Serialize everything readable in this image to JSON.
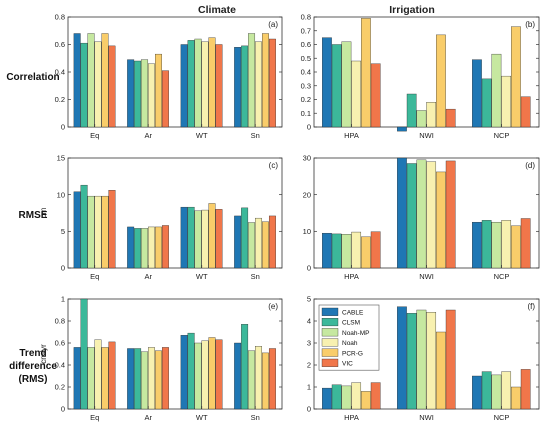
{
  "figure": {
    "col_titles": [
      "Climate",
      "Irrigation"
    ],
    "row_titles": [
      [
        "Correlation"
      ],
      [
        "RMSE"
      ],
      [
        "Trend",
        "difference",
        "(RMS)"
      ]
    ],
    "model_colors": [
      "#1f77b4",
      "#3cb89a",
      "#c6e8a0",
      "#f8f1b0",
      "#f9cd6a",
      "#f0764a"
    ]
  },
  "chart_data": [
    {
      "type": "bar",
      "panel_label": "(a)",
      "ylabel": "",
      "categories": [
        "Eq",
        "Ar",
        "WT",
        "Sn"
      ],
      "ylim": [
        0,
        0.8
      ],
      "yticks": [
        0,
        0.2,
        0.4,
        0.6,
        0.8
      ],
      "series": [
        {
          "name": "CABLE",
          "values": [
            0.68,
            0.49,
            0.6,
            0.58
          ]
        },
        {
          "name": "CLSM",
          "values": [
            0.61,
            0.48,
            0.63,
            0.59
          ]
        },
        {
          "name": "Noah-MP",
          "values": [
            0.68,
            0.49,
            0.64,
            0.68
          ]
        },
        {
          "name": "Noah",
          "values": [
            0.62,
            0.46,
            0.62,
            0.62
          ]
        },
        {
          "name": "PCR-G",
          "values": [
            0.68,
            0.53,
            0.65,
            0.68
          ]
        },
        {
          "name": "VIC",
          "values": [
            0.59,
            0.41,
            0.6,
            0.64
          ]
        }
      ]
    },
    {
      "type": "bar",
      "panel_label": "(b)",
      "ylabel": "",
      "categories": [
        "HPA",
        "NWI",
        "NCP"
      ],
      "ylim": [
        0,
        0.8
      ],
      "yticks": [
        0,
        0.1,
        0.2,
        0.3,
        0.4,
        0.5,
        0.6,
        0.7,
        0.8
      ],
      "series": [
        {
          "name": "CABLE",
          "values": [
            0.65,
            -0.03,
            0.49
          ]
        },
        {
          "name": "CLSM",
          "values": [
            0.6,
            0.24,
            0.35
          ]
        },
        {
          "name": "Noah-MP",
          "values": [
            0.62,
            0.12,
            0.53
          ]
        },
        {
          "name": "Noah",
          "values": [
            0.48,
            0.18,
            0.37
          ]
        },
        {
          "name": "PCR-G",
          "values": [
            0.79,
            0.67,
            0.73
          ]
        },
        {
          "name": "VIC",
          "values": [
            0.46,
            0.13,
            0.22
          ]
        }
      ]
    },
    {
      "type": "bar",
      "panel_label": "(c)",
      "ylabel": "cm",
      "categories": [
        "Eq",
        "Ar",
        "WT",
        "Sn"
      ],
      "ylim": [
        0,
        15
      ],
      "yticks": [
        0,
        5,
        10,
        15
      ],
      "series": [
        {
          "name": "CABLE",
          "values": [
            10.4,
            5.6,
            8.3,
            7.1
          ]
        },
        {
          "name": "CLSM",
          "values": [
            11.3,
            5.4,
            8.3,
            8.2
          ]
        },
        {
          "name": "Noah-MP",
          "values": [
            9.8,
            5.4,
            7.8,
            6.2
          ]
        },
        {
          "name": "Noah",
          "values": [
            9.8,
            5.6,
            7.9,
            6.8
          ]
        },
        {
          "name": "PCR-G",
          "values": [
            9.8,
            5.6,
            8.8,
            6.3
          ]
        },
        {
          "name": "VIC",
          "values": [
            10.6,
            5.8,
            8.0,
            7.1
          ]
        }
      ]
    },
    {
      "type": "bar",
      "panel_label": "(d)",
      "ylabel": "",
      "categories": [
        "HPA",
        "NWI",
        "NCP"
      ],
      "ylim": [
        0,
        30
      ],
      "yticks": [
        0,
        10,
        20,
        30
      ],
      "series": [
        {
          "name": "CABLE",
          "values": [
            9.5,
            30.0,
            12.5
          ]
        },
        {
          "name": "CLSM",
          "values": [
            9.3,
            28.5,
            13.0
          ]
        },
        {
          "name": "Noah-MP",
          "values": [
            9.2,
            29.5,
            12.5
          ]
        },
        {
          "name": "Noah",
          "values": [
            9.8,
            29.0,
            13.0
          ]
        },
        {
          "name": "PCR-G",
          "values": [
            8.5,
            26.2,
            11.5
          ]
        },
        {
          "name": "VIC",
          "values": [
            9.9,
            29.2,
            13.5
          ]
        }
      ]
    },
    {
      "type": "bar",
      "panel_label": "(e)",
      "ylabel": "cm/yr",
      "categories": [
        "Eq",
        "Ar",
        "WT",
        "Sn"
      ],
      "ylim": [
        0,
        1
      ],
      "yticks": [
        0,
        0.2,
        0.4,
        0.6,
        0.8,
        1
      ],
      "series": [
        {
          "name": "CABLE",
          "values": [
            0.56,
            0.55,
            0.67,
            0.6
          ]
        },
        {
          "name": "CLSM",
          "values": [
            1.0,
            0.55,
            0.69,
            0.77
          ]
        },
        {
          "name": "Noah-MP",
          "values": [
            0.56,
            0.52,
            0.6,
            0.53
          ]
        },
        {
          "name": "Noah",
          "values": [
            0.63,
            0.56,
            0.62,
            0.57
          ]
        },
        {
          "name": "PCR-G",
          "values": [
            0.56,
            0.53,
            0.65,
            0.51
          ]
        },
        {
          "name": "VIC",
          "values": [
            0.61,
            0.56,
            0.63,
            0.55
          ]
        }
      ]
    },
    {
      "type": "bar",
      "panel_label": "(f)",
      "ylabel": "",
      "categories": [
        "HPA",
        "NWI",
        "NCP"
      ],
      "ylim": [
        0,
        5
      ],
      "yticks": [
        0,
        1,
        2,
        3,
        4,
        5
      ],
      "legend": {
        "position": "top-left",
        "entries": [
          "CABLE",
          "CLSM",
          "Noah-MP",
          "Noah",
          "PCR-G",
          "VIC"
        ]
      },
      "series": [
        {
          "name": "CABLE",
          "values": [
            0.95,
            4.65,
            1.5
          ]
        },
        {
          "name": "CLSM",
          "values": [
            1.1,
            4.35,
            1.7
          ]
        },
        {
          "name": "Noah-MP",
          "values": [
            1.05,
            4.5,
            1.55
          ]
        },
        {
          "name": "Noah",
          "values": [
            1.2,
            4.4,
            1.7
          ]
        },
        {
          "name": "PCR-G",
          "values": [
            0.8,
            3.5,
            1.0
          ]
        },
        {
          "name": "VIC",
          "values": [
            1.2,
            4.5,
            1.8
          ]
        }
      ]
    }
  ]
}
